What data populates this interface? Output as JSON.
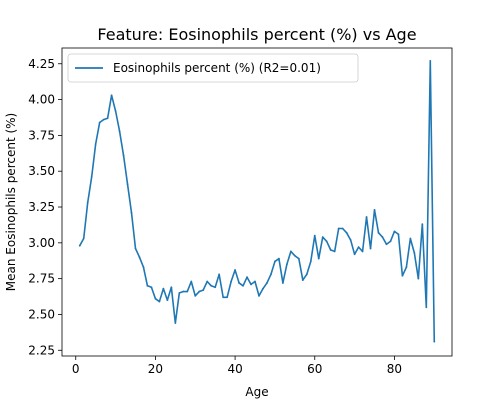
{
  "chart_data": {
    "type": "line",
    "title": "Feature: Eosinophils percent (%) vs Age",
    "xlabel": "Age",
    "ylabel": "Mean Eosinophils percent (%)",
    "xlim": [
      -3.45,
      94.45
    ],
    "ylim": [
      2.21,
      4.36
    ],
    "xticks": [
      "0",
      "20",
      "40",
      "60",
      "80"
    ],
    "yticks": [
      "2.25",
      "2.50",
      "2.75",
      "3.00",
      "3.25",
      "3.50",
      "3.75",
      "4.00",
      "4.25"
    ],
    "legend_position": "top-left",
    "grid": false,
    "series": [
      {
        "name": "Eosinophils percent (%) (R2=0.01)",
        "color": "#1f77b4",
        "x": [
          1,
          2,
          3,
          4,
          5,
          6,
          7,
          8,
          9,
          10,
          11,
          12,
          13,
          14,
          15,
          16,
          17,
          18,
          19,
          20,
          21,
          22,
          23,
          24,
          25,
          26,
          27,
          28,
          29,
          30,
          31,
          32,
          33,
          34,
          35,
          36,
          37,
          38,
          39,
          40,
          41,
          42,
          43,
          44,
          45,
          46,
          47,
          48,
          49,
          50,
          51,
          52,
          53,
          54,
          55,
          56,
          57,
          58,
          59,
          60,
          61,
          62,
          63,
          64,
          65,
          66,
          67,
          68,
          69,
          70,
          71,
          72,
          73,
          74,
          75,
          76,
          77,
          78,
          79,
          80,
          81,
          82,
          83,
          84,
          85,
          86,
          87,
          88,
          89,
          90
        ],
        "y": [
          2.98,
          3.03,
          3.28,
          3.46,
          3.69,
          3.84,
          3.86,
          3.87,
          4.03,
          3.92,
          3.78,
          3.61,
          3.41,
          3.21,
          2.96,
          2.9,
          2.83,
          2.7,
          2.69,
          2.61,
          2.59,
          2.68,
          2.6,
          2.69,
          2.44,
          2.65,
          2.66,
          2.66,
          2.73,
          2.63,
          2.66,
          2.67,
          2.73,
          2.7,
          2.69,
          2.78,
          2.62,
          2.62,
          2.73,
          2.81,
          2.72,
          2.7,
          2.76,
          2.71,
          2.73,
          2.63,
          2.68,
          2.72,
          2.78,
          2.87,
          2.89,
          2.72,
          2.85,
          2.94,
          2.91,
          2.89,
          2.74,
          2.78,
          2.87,
          3.05,
          2.89,
          3.04,
          3.01,
          2.95,
          2.94,
          3.1,
          3.1,
          3.07,
          3.02,
          2.92,
          2.97,
          2.94,
          3.18,
          2.96,
          3.23,
          3.07,
          3.04,
          2.99,
          3.01,
          3.08,
          3.06,
          2.77,
          2.83,
          3.03,
          2.93,
          2.75,
          3.13,
          2.55,
          4.27,
          2.31
        ]
      }
    ]
  }
}
